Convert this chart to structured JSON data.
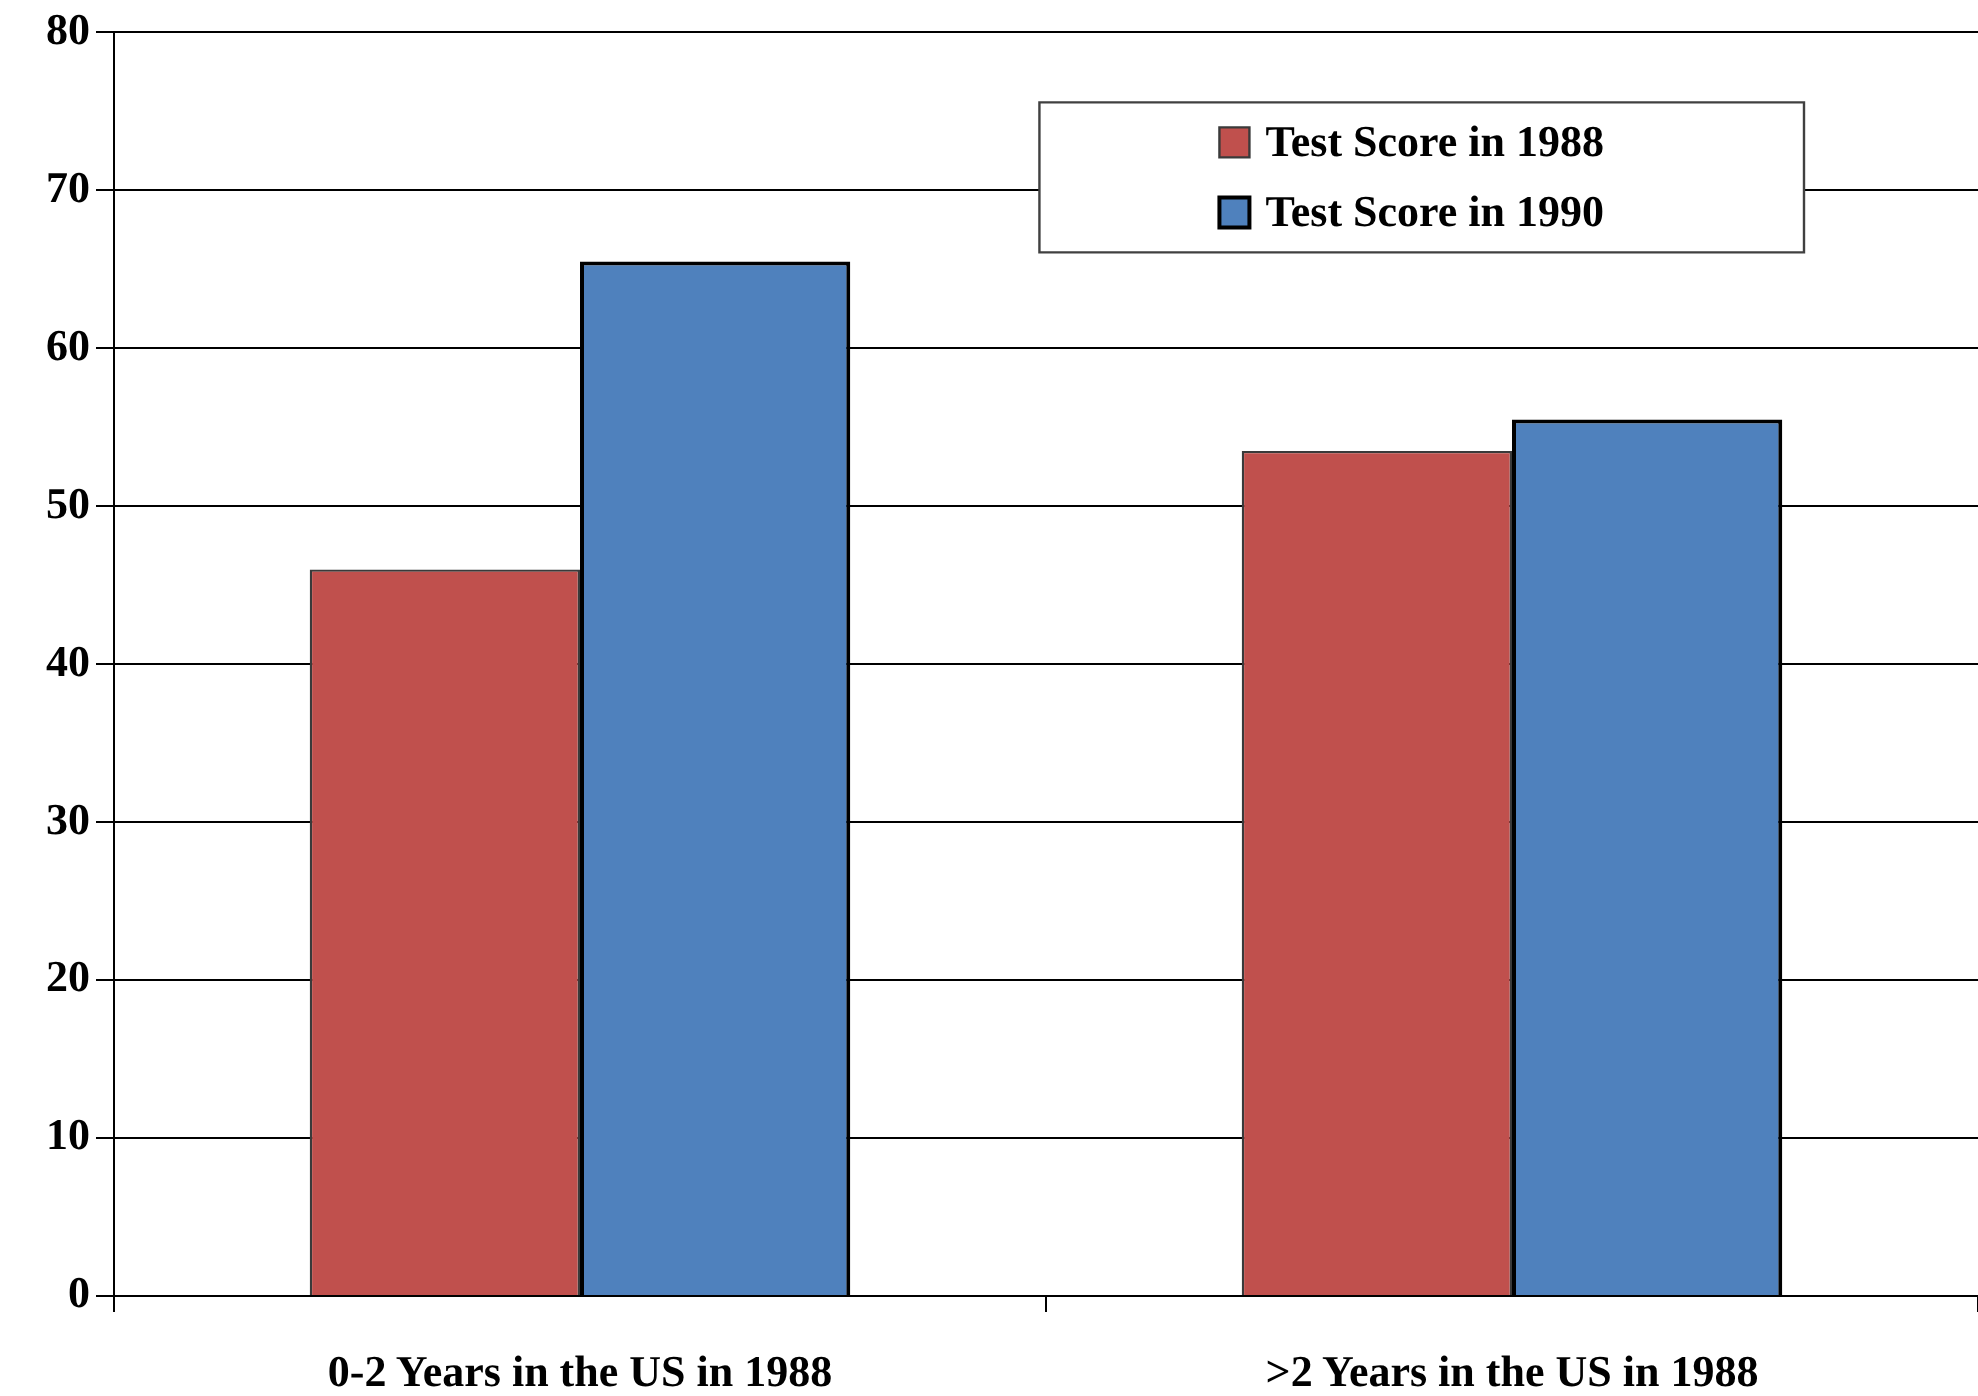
{
  "chart_data": {
    "type": "bar",
    "categories": [
      "0-2 Years in the US in 1988",
      ">2 Years in the US in 1988"
    ],
    "series": [
      {
        "name": "Test Score in 1988",
        "color": "#c0504d",
        "values": [
          46,
          53.5
        ]
      },
      {
        "name": "Test Score in 1990",
        "color": "#4f81bd",
        "values": [
          65.5,
          55.5
        ]
      }
    ],
    "ylim": [
      0,
      80
    ],
    "yticks": [
      0,
      10,
      20,
      30,
      40,
      50,
      60,
      70,
      80
    ],
    "grid": "y",
    "legend": "top right"
  }
}
